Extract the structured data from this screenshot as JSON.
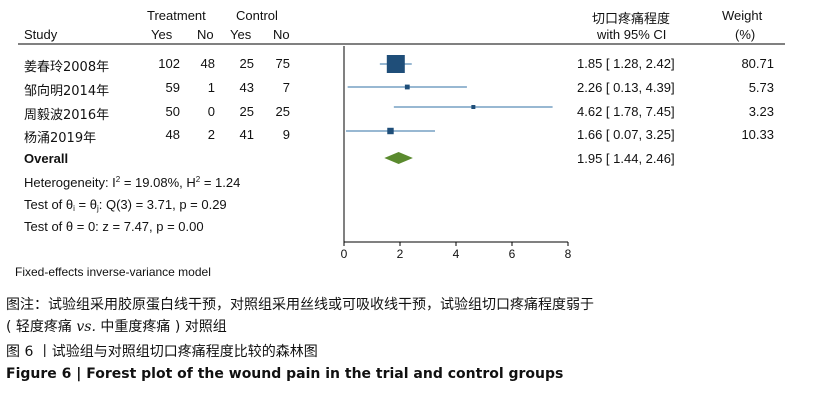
{
  "header": {
    "treatment": "Treatment",
    "control": "Control",
    "study": "Study",
    "yes1": "Yes",
    "no1": "No",
    "yes2": "Yes",
    "no2": "No",
    "effect_line1": "切口疼痛程度",
    "effect_line2": "with 95% CI",
    "weight_line1": "Weight",
    "weight_line2": "(%)"
  },
  "stats": {
    "heterogeneity_label": "Heterogeneity: I",
    "heterogeneity_value": " = 19.08%, H",
    "heterogeneity_h": " = 1.24",
    "test_theta_label": "Test of θ",
    "test_theta_eq": " = θ",
    "test_theta_rest": ": Q(3) = 3.71, p = 0.29",
    "test_zero": "Test of θ = 0: z = 7.47, p = 0.00",
    "i_sub": "i",
    "j_sub": "j",
    "sq": "2"
  },
  "model_note": "Fixed-effects inverse-variance model",
  "caption": {
    "note_line1": "图注：试验组采用胶原蛋白线干预，对照组采用丝线或可吸收线干预，试验组切口疼痛程度弱于",
    "note_line2_a": "( 轻度疼痛 ",
    "note_line2_vs": "vs.",
    "note_line2_b": " 中重度疼痛 ) 对照组",
    "figure_cn": "图 6 丨试验组与对照组切口疼痛程度比较的森林图",
    "figure_en": "Figure 6  |  Forest plot of the wound pain in the trial and control groups"
  },
  "colors": {
    "square": "#1f4e79",
    "ci_line": "#5b8db8",
    "diamond": "#5a8a2e",
    "axis": "#000000"
  },
  "chart_data": {
    "type": "forest",
    "xlim": [
      0,
      8
    ],
    "xticks": [
      0,
      2,
      4,
      6,
      8
    ],
    "studies": [
      {
        "name": "姜春玲2008年",
        "t_yes": 102,
        "t_no": 48,
        "c_yes": 25,
        "c_no": 75,
        "est": 1.85,
        "lo": 1.28,
        "hi": 2.42,
        "ci_text": "1.85 [  1.28,  2.42]",
        "weight": 80.71,
        "weight_text": "80.71"
      },
      {
        "name": "邹向明2014年",
        "t_yes": 59,
        "t_no": 1,
        "c_yes": 43,
        "c_no": 7,
        "est": 2.26,
        "lo": 0.13,
        "hi": 4.39,
        "ci_text": "2.26 [  0.13,  4.39]",
        "weight": 5.73,
        "weight_text": "5.73"
      },
      {
        "name": "周毅波2016年",
        "t_yes": 50,
        "t_no": 0,
        "c_yes": 25,
        "c_no": 25,
        "est": 4.62,
        "lo": 1.78,
        "hi": 7.45,
        "ci_text": "4.62 [  1.78,  7.45]",
        "weight": 3.23,
        "weight_text": "3.23"
      },
      {
        "name": "杨涌2019年",
        "t_yes": 48,
        "t_no": 2,
        "c_yes": 41,
        "c_no": 9,
        "est": 1.66,
        "lo": 0.07,
        "hi": 3.25,
        "ci_text": "1.66 [  0.07,  3.25]",
        "weight": 10.33,
        "weight_text": "10.33"
      }
    ],
    "overall": {
      "label": "Overall",
      "est": 1.95,
      "lo": 1.44,
      "hi": 2.46,
      "ci_text": "1.95 [  1.44,  2.46]"
    }
  }
}
